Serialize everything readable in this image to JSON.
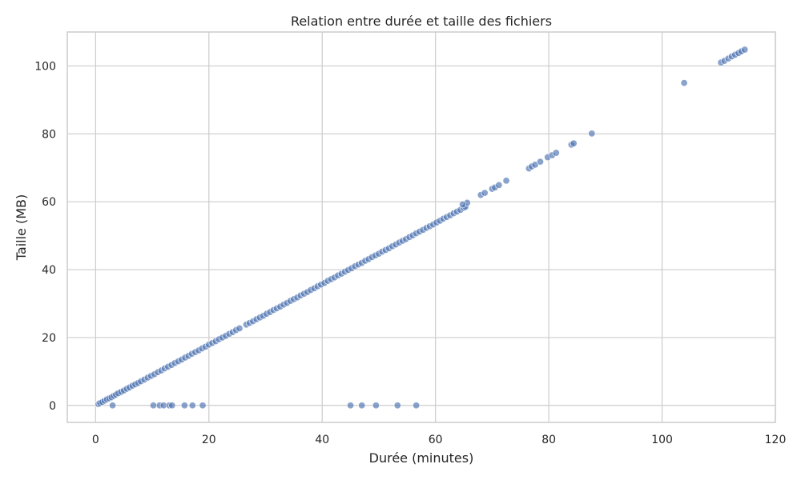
{
  "chart_data": {
    "type": "scatter",
    "title": "Relation entre durée et taille des fichiers",
    "xlabel": "Durée (minutes)",
    "ylabel": "Taille (MB)",
    "xlim": [
      -5,
      120
    ],
    "ylim": [
      -5,
      110
    ],
    "xticks": [
      0,
      20,
      40,
      60,
      80,
      100,
      120
    ],
    "yticks": [
      0,
      20,
      40,
      60,
      80,
      100
    ],
    "grid": true,
    "series": [
      {
        "color": "#4c72b0",
        "points": [
          [
            0.5,
            0.4
          ],
          [
            0.8,
            0.7
          ],
          [
            1.2,
            1.0
          ],
          [
            1.6,
            1.4
          ],
          [
            2.0,
            1.8
          ],
          [
            2.4,
            2.1
          ],
          [
            2.8,
            2.4
          ],
          [
            3.2,
            2.8
          ],
          [
            3.6,
            3.2
          ],
          [
            4.0,
            3.6
          ],
          [
            4.5,
            4.0
          ],
          [
            5.0,
            4.4
          ],
          [
            5.5,
            4.9
          ],
          [
            6.0,
            5.3
          ],
          [
            6.5,
            5.8
          ],
          [
            7.0,
            6.2
          ],
          [
            7.5,
            6.6
          ],
          [
            8.0,
            7.1
          ],
          [
            8.6,
            7.6
          ],
          [
            9.2,
            8.2
          ],
          [
            9.8,
            8.7
          ],
          [
            10.4,
            9.2
          ],
          [
            11.0,
            9.8
          ],
          [
            11.6,
            10.3
          ],
          [
            12.2,
            10.9
          ],
          [
            12.8,
            11.4
          ],
          [
            13.4,
            11.9
          ],
          [
            14.0,
            12.5
          ],
          [
            14.6,
            13.0
          ],
          [
            15.2,
            13.5
          ],
          [
            15.8,
            14.1
          ],
          [
            16.4,
            14.6
          ],
          [
            17.0,
            15.2
          ],
          [
            17.6,
            15.7
          ],
          [
            18.2,
            16.2
          ],
          [
            18.8,
            16.8
          ],
          [
            19.4,
            17.3
          ],
          [
            20.0,
            17.9
          ],
          [
            20.6,
            18.4
          ],
          [
            21.2,
            18.9
          ],
          [
            21.8,
            19.5
          ],
          [
            22.4,
            20.0
          ],
          [
            23.0,
            20.5
          ],
          [
            23.6,
            21.1
          ],
          [
            24.2,
            21.6
          ],
          [
            24.8,
            22.2
          ],
          [
            25.4,
            22.7
          ],
          [
            26.6,
            23.8
          ],
          [
            27.2,
            24.3
          ],
          [
            27.8,
            24.8
          ],
          [
            28.4,
            25.4
          ],
          [
            29.0,
            25.9
          ],
          [
            29.6,
            26.4
          ],
          [
            30.2,
            27.0
          ],
          [
            30.8,
            27.5
          ],
          [
            31.4,
            28.1
          ],
          [
            32.0,
            28.6
          ],
          [
            32.6,
            29.1
          ],
          [
            33.2,
            29.7
          ],
          [
            33.8,
            30.2
          ],
          [
            34.4,
            30.8
          ],
          [
            35.0,
            31.3
          ],
          [
            35.6,
            31.8
          ],
          [
            36.2,
            32.4
          ],
          [
            36.8,
            32.9
          ],
          [
            37.4,
            33.4
          ],
          [
            38.0,
            34.0
          ],
          [
            38.6,
            34.5
          ],
          [
            39.2,
            35.1
          ],
          [
            39.8,
            35.6
          ],
          [
            40.4,
            36.1
          ],
          [
            41.0,
            36.7
          ],
          [
            41.6,
            37.2
          ],
          [
            42.2,
            37.7
          ],
          [
            42.8,
            38.3
          ],
          [
            43.4,
            38.8
          ],
          [
            44.0,
            39.4
          ],
          [
            44.6,
            39.9
          ],
          [
            45.2,
            40.4
          ],
          [
            45.8,
            41.0
          ],
          [
            46.4,
            41.5
          ],
          [
            47.0,
            42.0
          ],
          [
            47.6,
            42.6
          ],
          [
            48.2,
            43.1
          ],
          [
            48.8,
            43.7
          ],
          [
            49.4,
            44.2
          ],
          [
            50.0,
            44.7
          ],
          [
            50.6,
            45.3
          ],
          [
            51.2,
            45.8
          ],
          [
            51.8,
            46.3
          ],
          [
            52.4,
            46.9
          ],
          [
            53.0,
            47.4
          ],
          [
            53.6,
            48.0
          ],
          [
            54.2,
            48.5
          ],
          [
            54.8,
            49.0
          ],
          [
            55.4,
            49.6
          ],
          [
            56.0,
            50.1
          ],
          [
            56.6,
            50.7
          ],
          [
            57.2,
            51.2
          ],
          [
            57.8,
            51.7
          ],
          [
            58.4,
            52.3
          ],
          [
            59.0,
            52.8
          ],
          [
            59.6,
            53.3
          ],
          [
            60.2,
            53.9
          ],
          [
            60.8,
            54.4
          ],
          [
            61.4,
            55.0
          ],
          [
            62.0,
            55.5
          ],
          [
            62.6,
            56.0
          ],
          [
            63.2,
            56.6
          ],
          [
            63.8,
            57.1
          ],
          [
            64.4,
            57.6
          ],
          [
            65.0,
            58.2
          ],
          [
            65.3,
            58.5
          ],
          [
            65.6,
            59.7
          ],
          [
            64.8,
            59.2
          ],
          [
            68.0,
            62.0
          ],
          [
            68.7,
            62.6
          ],
          [
            70.0,
            63.8
          ],
          [
            70.5,
            64.2
          ],
          [
            71.2,
            64.9
          ],
          [
            72.5,
            66.2
          ],
          [
            76.5,
            69.8
          ],
          [
            77.0,
            70.4
          ],
          [
            77.6,
            70.9
          ],
          [
            78.5,
            71.8
          ],
          [
            79.8,
            73.1
          ],
          [
            80.6,
            73.7
          ],
          [
            81.3,
            74.4
          ],
          [
            84.0,
            76.8
          ],
          [
            84.4,
            77.2
          ],
          [
            87.6,
            80.1
          ],
          [
            103.9,
            95.0
          ],
          [
            110.4,
            101.0
          ],
          [
            111.0,
            101.5
          ],
          [
            111.7,
            102.2
          ],
          [
            112.3,
            102.8
          ],
          [
            112.9,
            103.3
          ],
          [
            113.5,
            103.8
          ],
          [
            114.0,
            104.3
          ],
          [
            114.6,
            104.8
          ],
          [
            3.0,
            0.0
          ],
          [
            10.2,
            0.0
          ],
          [
            11.3,
            0.0
          ],
          [
            12.0,
            0.0
          ],
          [
            13.0,
            0.0
          ],
          [
            13.5,
            0.0
          ],
          [
            15.7,
            0.0
          ],
          [
            17.1,
            0.0
          ],
          [
            18.9,
            0.0
          ],
          [
            45.0,
            0.0
          ],
          [
            47.0,
            0.0
          ],
          [
            49.5,
            0.0
          ],
          [
            53.3,
            0.0
          ],
          [
            56.6,
            0.0
          ]
        ]
      }
    ]
  }
}
